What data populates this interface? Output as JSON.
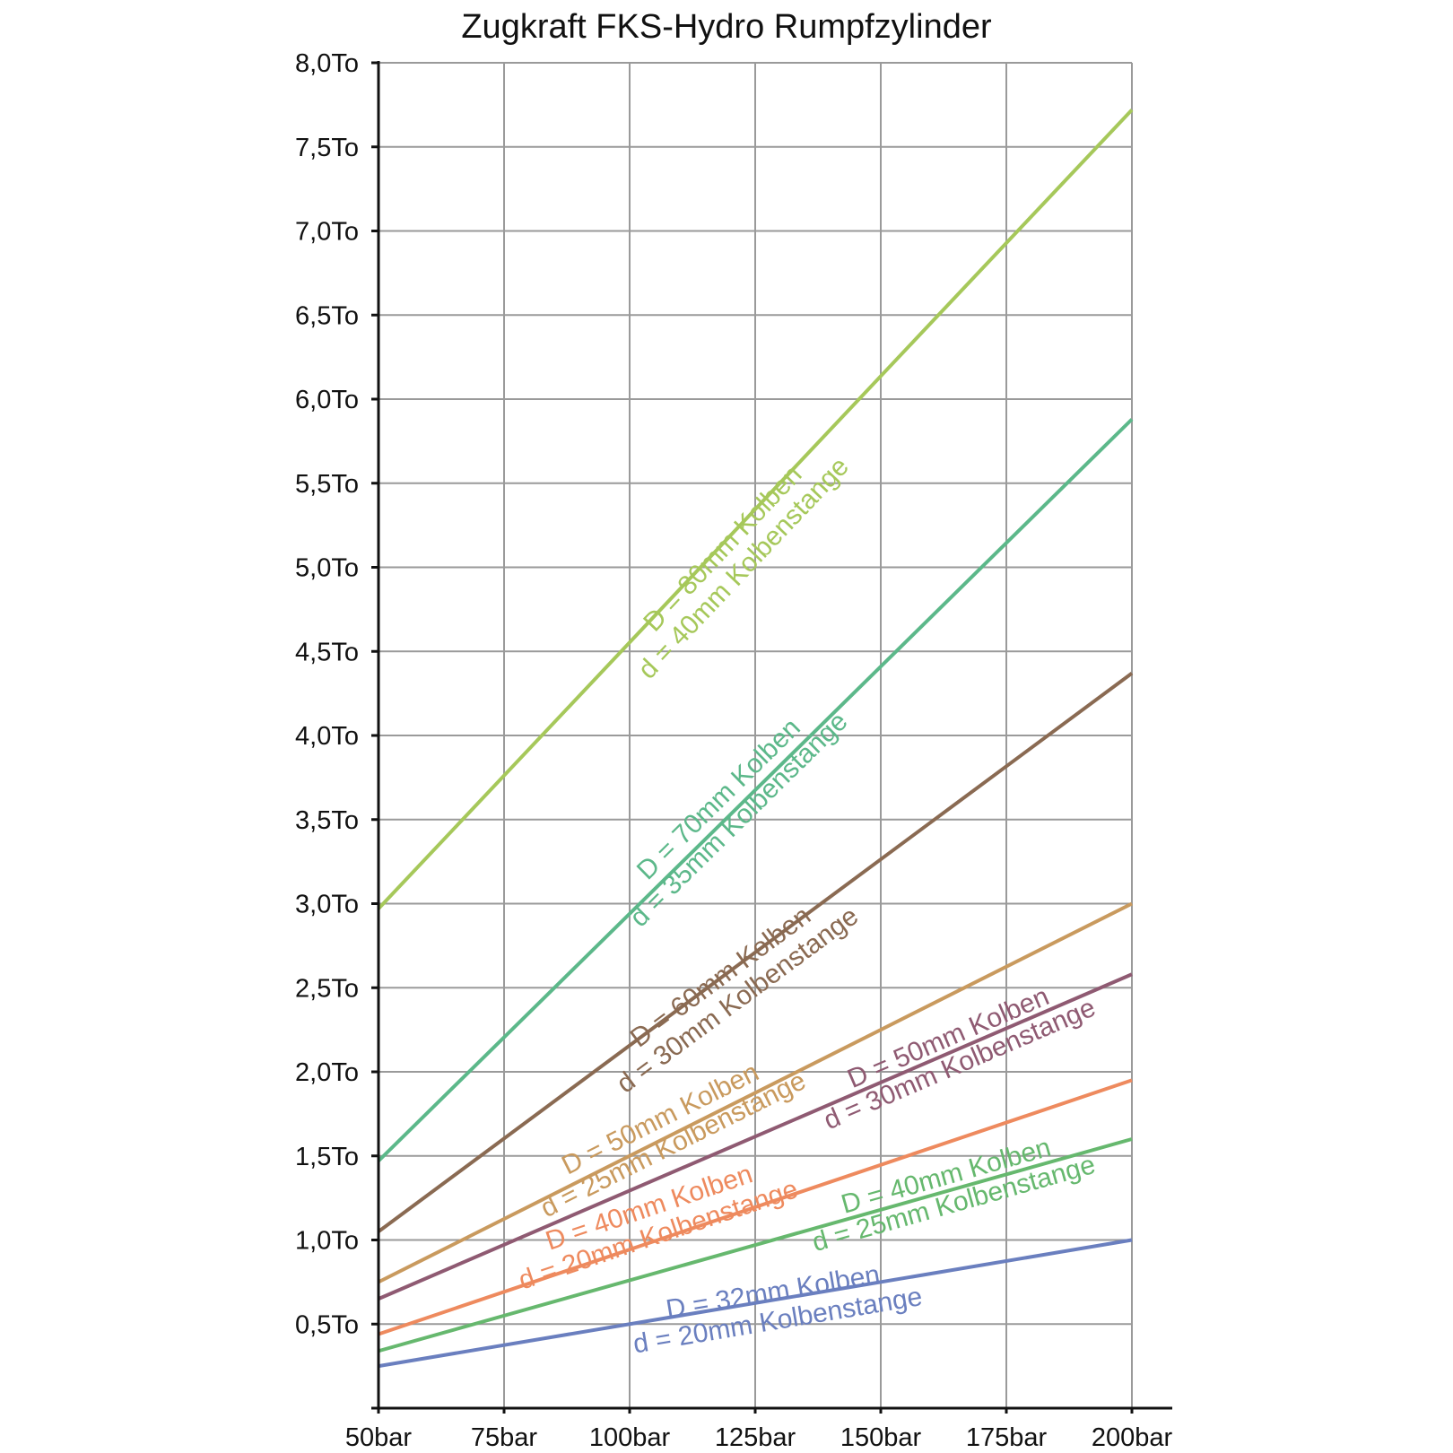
{
  "chart_data": {
    "type": "line",
    "title": "Zugkraft FKS-Hydro Rumpfzylinder",
    "xlabel": "",
    "ylabel": "",
    "x": [
      50,
      200
    ],
    "x_ticks": [
      {
        "value": 50,
        "label": "50bar"
      },
      {
        "value": 75,
        "label": "75bar"
      },
      {
        "value": 100,
        "label": "100bar"
      },
      {
        "value": 125,
        "label": "125bar"
      },
      {
        "value": 150,
        "label": "150bar"
      },
      {
        "value": 175,
        "label": "175bar"
      },
      {
        "value": 200,
        "label": "200bar"
      }
    ],
    "y_ticks": [
      {
        "value": 0.5,
        "label": "0,5To"
      },
      {
        "value": 1.0,
        "label": "1,0To"
      },
      {
        "value": 1.5,
        "label": "1,5To"
      },
      {
        "value": 2.0,
        "label": "2,0To"
      },
      {
        "value": 2.5,
        "label": "2,5To"
      },
      {
        "value": 3.0,
        "label": "3,0To"
      },
      {
        "value": 3.5,
        "label": "3,5To"
      },
      {
        "value": 4.0,
        "label": "4,0To"
      },
      {
        "value": 4.5,
        "label": "4,5To"
      },
      {
        "value": 5.0,
        "label": "5,0To"
      },
      {
        "value": 5.5,
        "label": "5,5To"
      },
      {
        "value": 6.0,
        "label": "6,0To"
      },
      {
        "value": 6.5,
        "label": "6,5To"
      },
      {
        "value": 7.0,
        "label": "7,0To"
      },
      {
        "value": 7.5,
        "label": "7,5To"
      },
      {
        "value": 8.0,
        "label": "8,0To"
      }
    ],
    "xlim": [
      50,
      200
    ],
    "ylim": [
      0,
      8.0
    ],
    "grid": true,
    "series": [
      {
        "label_line1": "D = 80mm Kolben",
        "label_line2": "d = 40mm Kolbenstange",
        "color": "#a6c85a",
        "x": [
          50,
          200
        ],
        "y": [
          2.97,
          7.72
        ]
      },
      {
        "label_line1": "D = 70mm Kolben",
        "label_line2": "d = 35mm Kolbenstange",
        "color": "#5cb88a",
        "x": [
          50,
          200
        ],
        "y": [
          1.47,
          5.88
        ]
      },
      {
        "label_line1": "D = 60mm Kolben",
        "label_line2": "d = 30mm Kolbenstange",
        "color": "#8a6a52",
        "x": [
          50,
          200
        ],
        "y": [
          1.05,
          4.37
        ]
      },
      {
        "label_line1": "D = 50mm Kolben",
        "label_line2": "d = 25mm Kolbenstange",
        "color": "#c99a5e",
        "x": [
          50,
          200
        ],
        "y": [
          0.75,
          3.0
        ]
      },
      {
        "label_line1": "D = 50mm Kolben",
        "label_line2": "d = 30mm Kolbenstange",
        "color": "#8f5a72",
        "x": [
          50,
          200
        ],
        "y": [
          0.65,
          2.58
        ]
      },
      {
        "label_line1": "D = 40mm Kolben",
        "label_line2": "d = 20mm Kolbenstange",
        "color": "#ee8a5e",
        "x": [
          50,
          200
        ],
        "y": [
          0.44,
          1.95
        ]
      },
      {
        "label_line1": "D = 40mm Kolben",
        "label_line2": "d = 25mm Kolbenstange",
        "color": "#66b86e",
        "x": [
          50,
          200
        ],
        "y": [
          0.34,
          1.6
        ]
      },
      {
        "label_line1": "D = 32mm Kolben",
        "label_line2": "d = 20mm Kolbenstange",
        "color": "#6a7fbf",
        "x": [
          50,
          200
        ],
        "y": [
          0.25,
          1.0
        ]
      }
    ]
  }
}
